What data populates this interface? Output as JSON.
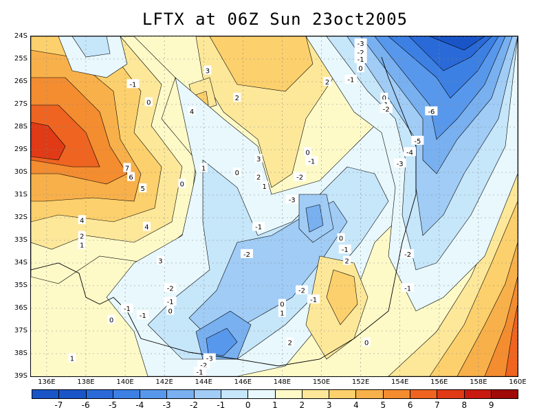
{
  "title": "LFTX at 06Z Sun 23oct2005",
  "map": {
    "type": "filled contour map",
    "field": "LFTX",
    "lon_range": [
      135.2,
      160
    ],
    "lat_range": [
      -39,
      -24
    ],
    "grid": true,
    "lon_ticks": [
      "136E",
      "138E",
      "140E",
      "142E",
      "144E",
      "146E",
      "148E",
      "150E",
      "152E",
      "154E",
      "156E",
      "158E",
      "160E"
    ],
    "lat_ticks": [
      "24S",
      "25S",
      "26S",
      "27S",
      "28S",
      "29S",
      "30S",
      "31S",
      "32S",
      "33S",
      "34S",
      "35S",
      "36S",
      "37S",
      "38S",
      "39S"
    ]
  },
  "colorbar": {
    "labels": [
      "-7",
      "-6",
      "-5",
      "-4",
      "-3",
      "-2",
      "-1",
      "0",
      "1",
      "2",
      "3",
      "4",
      "5",
      "6",
      "7",
      "8",
      "9"
    ],
    "colors": [
      "#1a55c8",
      "#2a6ad8",
      "#3c80e4",
      "#5898ec",
      "#78b0f0",
      "#a0ccf6",
      "#c6e6fa",
      "#e8f8fc",
      "#fefac8",
      "#fde89a",
      "#fcd06c",
      "#f8b04a",
      "#f48c30",
      "#ee6420",
      "#e03a16",
      "#c81a10",
      "#a00a08"
    ]
  },
  "contour_labels": [
    {
      "text": "-3",
      "lon": 152.0,
      "lat": -24.3
    },
    {
      "text": "-2",
      "lon": 152.0,
      "lat": -24.7
    },
    {
      "text": "-1",
      "lon": 152.0,
      "lat": -25.0
    },
    {
      "text": "0",
      "lon": 152.0,
      "lat": -25.4
    },
    {
      "text": "-1",
      "lon": 151.5,
      "lat": -25.9
    },
    {
      "text": "2",
      "lon": 150.3,
      "lat": -26.0
    },
    {
      "text": "3",
      "lon": 144.2,
      "lat": -25.5
    },
    {
      "text": "-1",
      "lon": 140.4,
      "lat": -26.1
    },
    {
      "text": "0",
      "lon": 141.2,
      "lat": -26.9
    },
    {
      "text": "2",
      "lon": 145.7,
      "lat": -26.7
    },
    {
      "text": "4",
      "lon": 143.4,
      "lat": -27.3
    },
    {
      "text": "0",
      "lon": 153.2,
      "lat": -26.7
    },
    {
      "text": "1",
      "lon": 153.3,
      "lat": -27.0
    },
    {
      "text": "-2",
      "lon": 153.3,
      "lat": -27.2
    },
    {
      "text": "-6",
      "lon": 155.6,
      "lat": -27.3
    },
    {
      "text": "-5",
      "lon": 154.9,
      "lat": -28.6
    },
    {
      "text": "-4",
      "lon": 154.5,
      "lat": -29.1
    },
    {
      "text": "-3",
      "lon": 154.0,
      "lat": -29.6
    },
    {
      "text": "0",
      "lon": 149.3,
      "lat": -29.1
    },
    {
      "text": "-1",
      "lon": 149.5,
      "lat": -29.5
    },
    {
      "text": "3",
      "lon": 146.8,
      "lat": -29.4
    },
    {
      "text": "7",
      "lon": 140.1,
      "lat": -29.8
    },
    {
      "text": "6",
      "lon": 140.3,
      "lat": -30.2
    },
    {
      "text": "5",
      "lon": 140.9,
      "lat": -30.7
    },
    {
      "text": "1",
      "lon": 144.0,
      "lat": -29.8
    },
    {
      "text": "0",
      "lon": 142.9,
      "lat": -30.5
    },
    {
      "text": "0",
      "lon": 145.7,
      "lat": -30.0
    },
    {
      "text": "2",
      "lon": 146.8,
      "lat": -30.2
    },
    {
      "text": "1",
      "lon": 147.1,
      "lat": -30.6
    },
    {
      "text": "-2",
      "lon": 148.9,
      "lat": -30.2
    },
    {
      "text": "-3",
      "lon": 148.5,
      "lat": -31.2
    },
    {
      "text": "4",
      "lon": 137.8,
      "lat": -32.1
    },
    {
      "text": "2",
      "lon": 137.8,
      "lat": -32.8
    },
    {
      "text": "1",
      "lon": 137.8,
      "lat": -33.2
    },
    {
      "text": "4",
      "lon": 141.1,
      "lat": -32.4
    },
    {
      "text": "-1",
      "lon": 146.8,
      "lat": -32.4
    },
    {
      "text": "0",
      "lon": 151.0,
      "lat": -32.9
    },
    {
      "text": "-1",
      "lon": 151.2,
      "lat": -33.4
    },
    {
      "text": "2",
      "lon": 151.3,
      "lat": -33.9
    },
    {
      "text": "-2",
      "lon": 146.2,
      "lat": -33.6
    },
    {
      "text": "-2",
      "lon": 154.4,
      "lat": -33.6
    },
    {
      "text": "3",
      "lon": 141.8,
      "lat": -33.9
    },
    {
      "text": "-2",
      "lon": 142.3,
      "lat": -35.1
    },
    {
      "text": "-2",
      "lon": 149.0,
      "lat": -35.2
    },
    {
      "text": "-1",
      "lon": 154.4,
      "lat": -35.1
    },
    {
      "text": "-1",
      "lon": 142.3,
      "lat": -35.7
    },
    {
      "text": "-1",
      "lon": 149.6,
      "lat": -35.6
    },
    {
      "text": "0",
      "lon": 142.3,
      "lat": -36.1
    },
    {
      "text": "-1",
      "lon": 140.1,
      "lat": -36.0
    },
    {
      "text": "-1",
      "lon": 140.9,
      "lat": -36.3
    },
    {
      "text": "0",
      "lon": 148.0,
      "lat": -35.8
    },
    {
      "text": "1",
      "lon": 148.0,
      "lat": -36.2
    },
    {
      "text": "0",
      "lon": 139.3,
      "lat": -36.5
    },
    {
      "text": "2",
      "lon": 148.4,
      "lat": -37.5
    },
    {
      "text": "0",
      "lon": 152.3,
      "lat": -37.5
    },
    {
      "text": "1",
      "lon": 137.3,
      "lat": -38.2
    },
    {
      "text": "-3",
      "lon": 144.3,
      "lat": -38.2
    },
    {
      "text": "-2",
      "lon": 144.0,
      "lat": -38.5
    },
    {
      "text": "-1",
      "lon": 143.8,
      "lat": -38.8
    }
  ]
}
